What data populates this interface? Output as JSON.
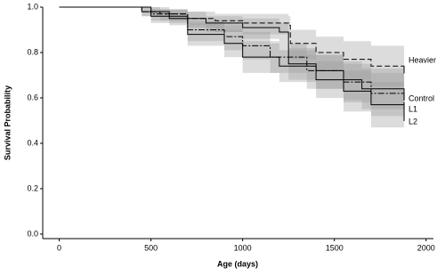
{
  "chart_data": {
    "type": "survival",
    "x_label": "Age (days)",
    "y_label": "Survival Probability",
    "xlim": [
      -90,
      2040
    ],
    "ylim": [
      -0.02,
      1.0
    ],
    "xticks": [
      0,
      500,
      1000,
      1500,
      2000
    ],
    "yticks": [
      {
        "value": 0,
        "label": "0.0"
      },
      {
        "value": 0.2,
        "label": "0.2"
      },
      {
        "value": 0.4,
        "label": "0.4"
      },
      {
        "value": 0.6,
        "label": "0.6"
      },
      {
        "value": 0.8,
        "label": "0.8"
      },
      {
        "value": 1.0,
        "label": "1.0"
      }
    ],
    "grid": false,
    "series": [
      {
        "name": "Heavier",
        "color": "#000000",
        "band_color": "#9a9a9a",
        "line_style": "dashed",
        "x": [
          0,
          360,
          450,
          550,
          700,
          850,
          1000,
          1250,
          1260,
          1400,
          1550,
          1700,
          1880
        ],
        "values": [
          1,
          1,
          0.98,
          0.97,
          0.95,
          0.94,
          0.93,
          0.92,
          0.84,
          0.8,
          0.77,
          0.74,
          0.72
        ],
        "lower": [
          1,
          1,
          0.96,
          0.94,
          0.91,
          0.89,
          0.88,
          0.86,
          0.77,
          0.72,
          0.68,
          0.65,
          0.62
        ],
        "upper": [
          1,
          1,
          1,
          0.99,
          0.98,
          0.97,
          0.97,
          0.96,
          0.9,
          0.87,
          0.85,
          0.83,
          0.81
        ]
      },
      {
        "name": "Control",
        "color": "#000000",
        "band_color": "#9a9a9a",
        "line_style": "solid",
        "x": [
          0,
          360,
          450,
          600,
          800,
          1000,
          1200,
          1250,
          1400,
          1550,
          1650,
          1880
        ],
        "values": [
          1,
          1,
          0.98,
          0.95,
          0.93,
          0.91,
          0.89,
          0.75,
          0.72,
          0.68,
          0.64,
          0.6
        ],
        "lower": [
          1,
          1,
          0.96,
          0.92,
          0.89,
          0.86,
          0.84,
          0.68,
          0.64,
          0.59,
          0.55,
          0.5
        ],
        "upper": [
          1,
          1,
          1,
          0.98,
          0.96,
          0.95,
          0.93,
          0.82,
          0.79,
          0.76,
          0.73,
          0.7
        ]
      },
      {
        "name": "L1",
        "color": "#000000",
        "band_color": "#9a9a9a",
        "line_style": "dashdot",
        "x": [
          0,
          360,
          500,
          700,
          900,
          1000,
          1150,
          1350,
          1550,
          1700,
          1880
        ],
        "values": [
          1,
          1,
          0.97,
          0.9,
          0.87,
          0.83,
          0.78,
          0.72,
          0.67,
          0.62,
          0.56
        ],
        "lower": [
          1,
          1,
          0.94,
          0.85,
          0.81,
          0.77,
          0.71,
          0.64,
          0.58,
          0.52,
          0.45
        ],
        "upper": [
          1,
          1,
          0.99,
          0.94,
          0.92,
          0.89,
          0.84,
          0.79,
          0.75,
          0.71,
          0.66
        ]
      },
      {
        "name": "L2",
        "color": "#000000",
        "band_color": "#9a9a9a",
        "line_style": "solid",
        "x": [
          0,
          360,
          500,
          700,
          900,
          1000,
          1200,
          1400,
          1550,
          1700,
          1880
        ],
        "values": [
          1,
          1,
          0.96,
          0.88,
          0.84,
          0.78,
          0.74,
          0.68,
          0.63,
          0.57,
          0.51
        ],
        "lower": [
          1,
          1,
          0.93,
          0.83,
          0.78,
          0.71,
          0.67,
          0.6,
          0.54,
          0.47,
          0.4
        ],
        "upper": [
          1,
          1,
          0.99,
          0.93,
          0.9,
          0.85,
          0.81,
          0.76,
          0.72,
          0.67,
          0.61
        ]
      }
    ]
  }
}
